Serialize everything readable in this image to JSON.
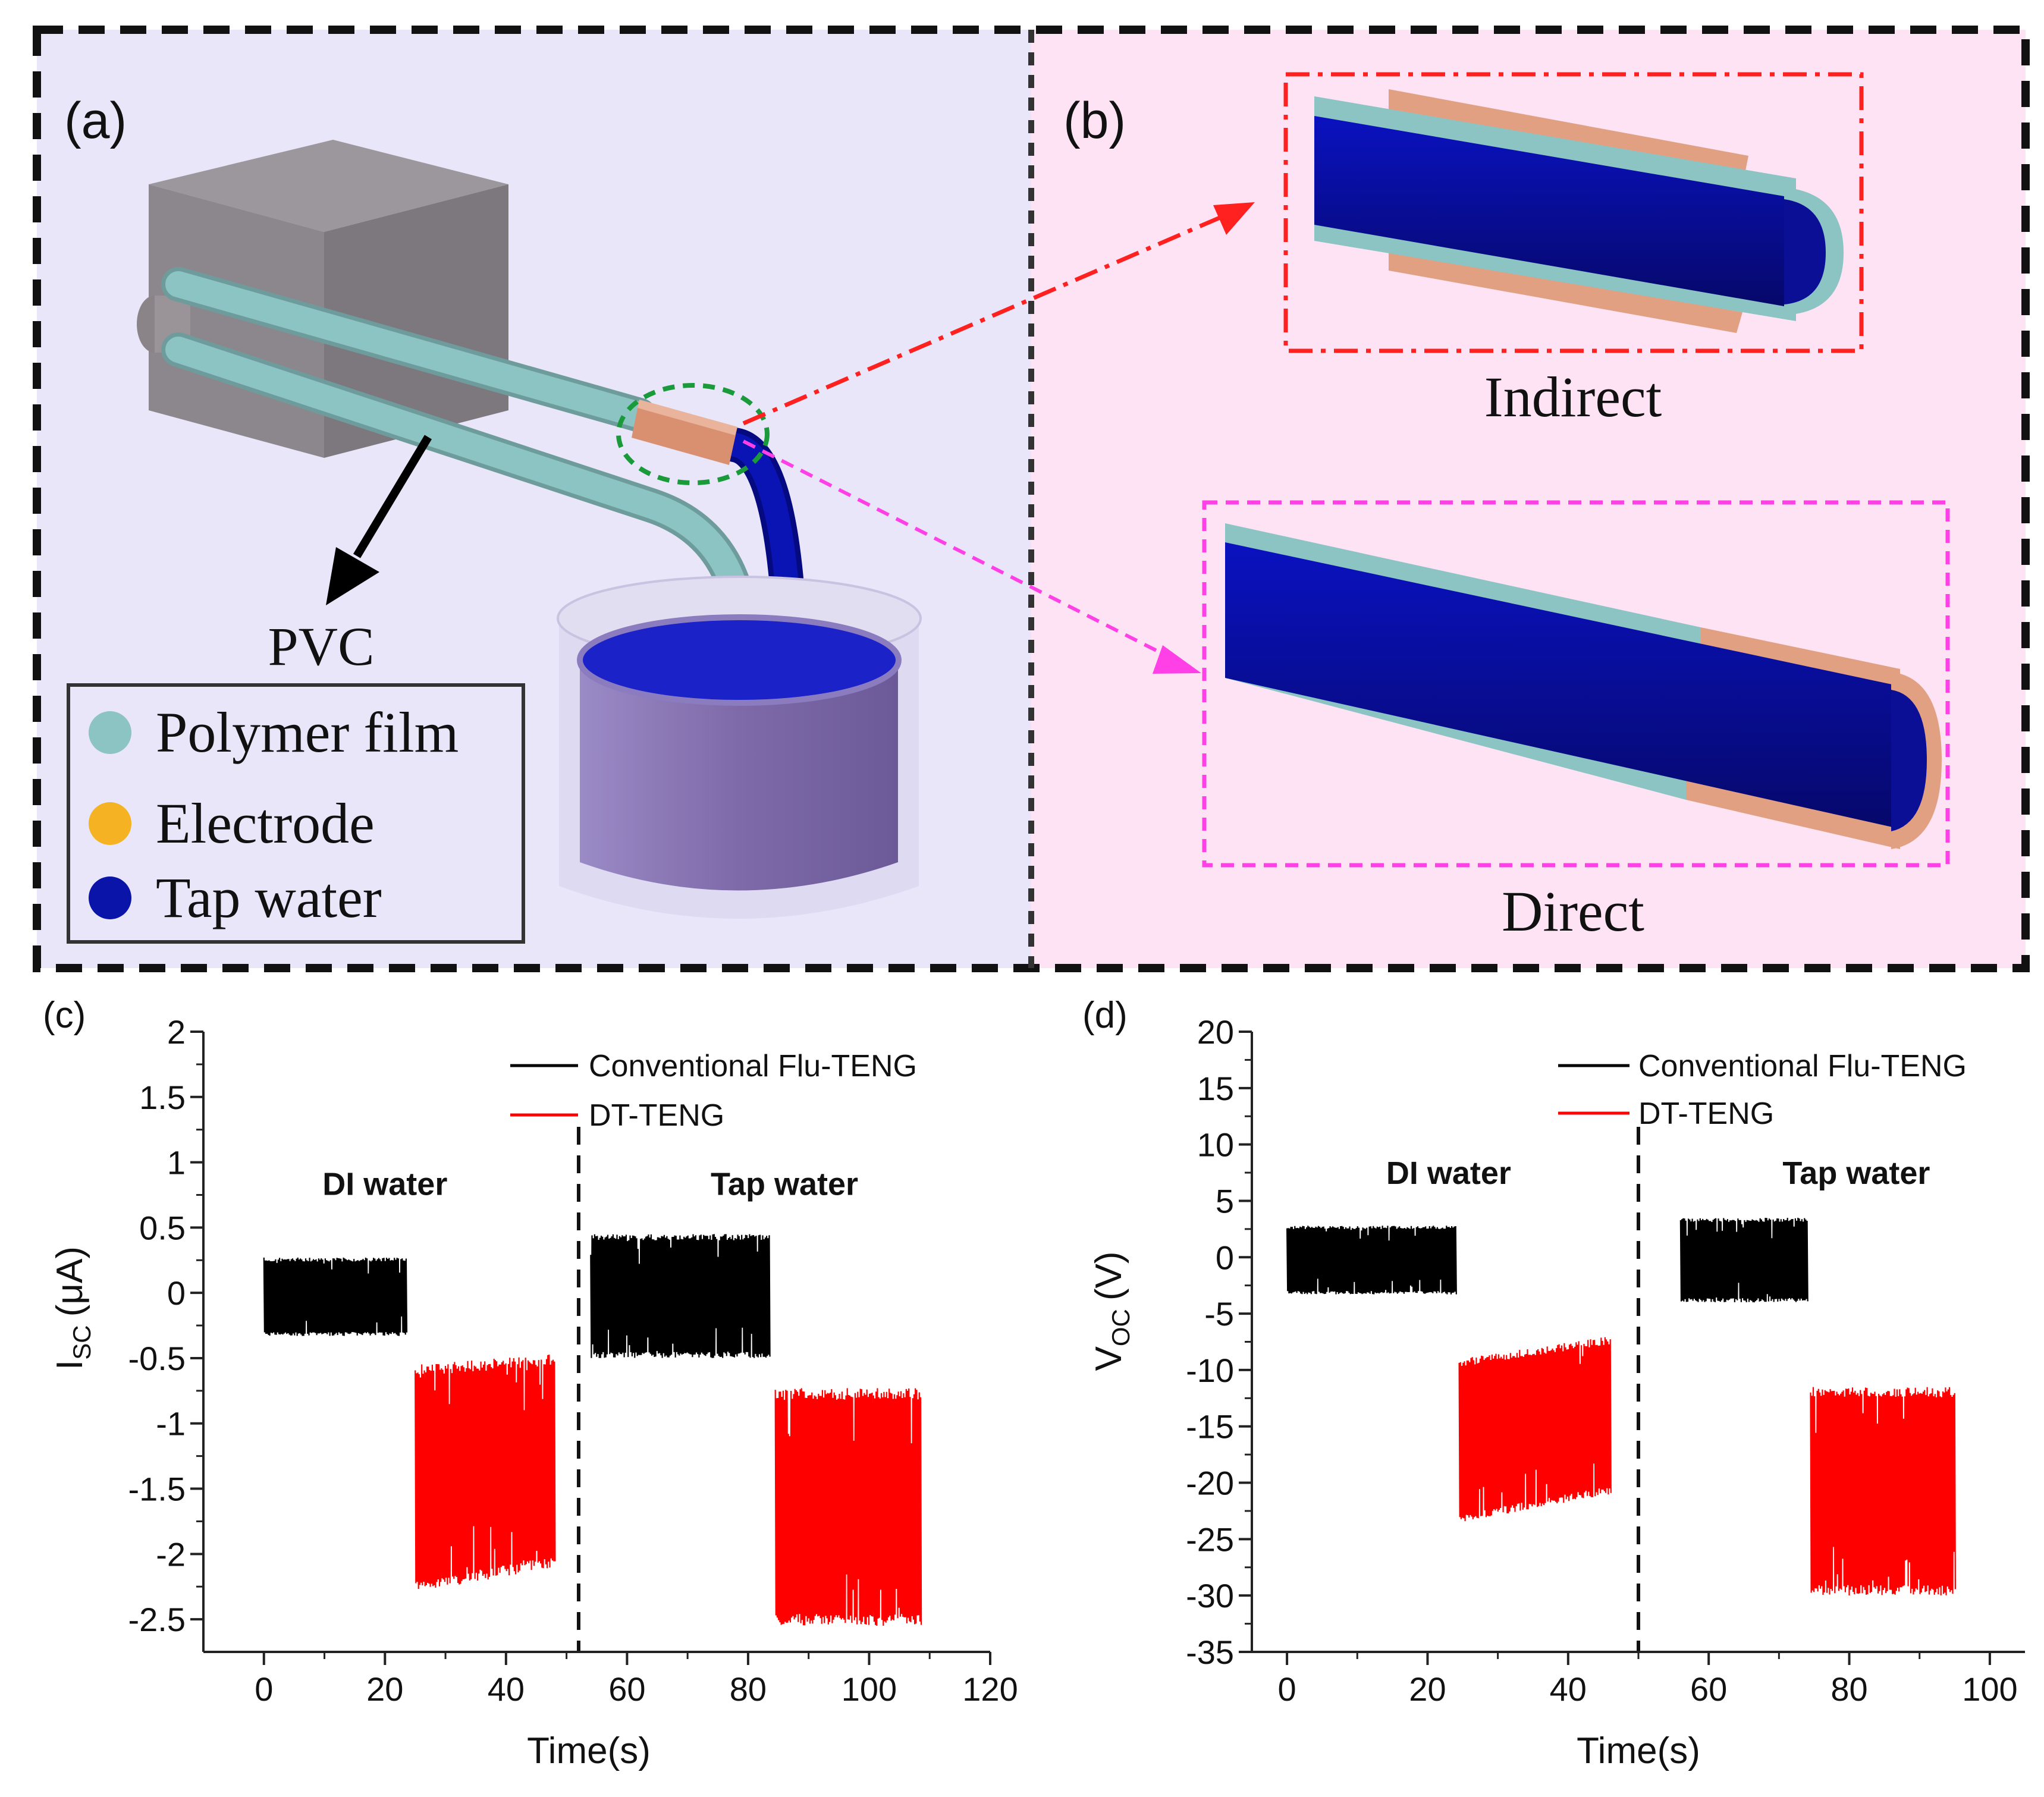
{
  "figure": {
    "panel_a": {
      "label": "(a)",
      "pvc_label": "PVC",
      "legend": [
        {
          "label": "Polymer film",
          "color": "#8cc3c3"
        },
        {
          "label": "Electrode",
          "color": "#f5b324"
        },
        {
          "label": "Tap water",
          "color": "#0a14a8"
        }
      ]
    },
    "panel_b": {
      "label": "(b)",
      "indirect_label": "Indirect",
      "direct_label": "Direct"
    },
    "colors": {
      "panel_a_bg": "#e8e6f8",
      "panel_b_bg": "#fde3f4",
      "tube": "#8cc3c3",
      "electrode": "#e2a082",
      "water": "#0a0f96",
      "block": "#8e8a90",
      "cup": "#8a78b0",
      "indirect_arrow": "#ff2020",
      "direct_arrow": "#ff40e6",
      "series_conventional": "#000000",
      "series_dt": "#ff0000"
    }
  },
  "chart_data": [
    {
      "panel": "(c)",
      "type": "line",
      "xlabel": "Time(s)",
      "ylabel": "I",
      "ylabel_sub": "SC",
      "ylabel_unit": "(μA)",
      "xlim": [
        -10,
        120
      ],
      "ylim": [
        -2.75,
        2
      ],
      "xticks": [
        0,
        20,
        40,
        60,
        80,
        100,
        120
      ],
      "yticks": [
        2,
        1.5,
        1,
        0.5,
        0,
        -0.5,
        -1,
        -1.5,
        -2,
        -2.5
      ],
      "divider_x": 52,
      "annotations": [
        {
          "text": "DI water",
          "x": 20,
          "y": 0.75
        },
        {
          "text": "Tap water",
          "x": 86,
          "y": 0.75
        }
      ],
      "legend": [
        {
          "name": "Conventional Flu-TENG",
          "color": "#000000"
        },
        {
          "name": "DT-TENG",
          "color": "#ff0000"
        }
      ],
      "series": [
        {
          "name": "Conventional Flu-TENG",
          "segment": "DI water",
          "x_range": [
            0,
            23.5
          ],
          "y_max": 0.27,
          "y_min": -0.33,
          "color": "#000000"
        },
        {
          "name": "DT-TENG",
          "segment": "DI water",
          "x_range": [
            25,
            48
          ],
          "y_max_start": -0.55,
          "y_max_end": -0.47,
          "y_min_start": -2.3,
          "y_min_end": -2.1,
          "color": "#ff0000"
        },
        {
          "name": "Conventional Flu-TENG",
          "segment": "Tap water",
          "x_range": [
            54,
            83.5
          ],
          "y_max": 0.45,
          "y_min": -0.5,
          "color": "#000000"
        },
        {
          "name": "DT-TENG",
          "segment": "Tap water",
          "x_range": [
            84.5,
            108.5
          ],
          "y_max": -0.73,
          "y_min": -2.55,
          "color": "#ff0000"
        }
      ]
    },
    {
      "panel": "(d)",
      "type": "line",
      "xlabel": "Time(s)",
      "ylabel": "V",
      "ylabel_sub": "OC",
      "ylabel_unit": "(V)",
      "xlim": [
        -5,
        105
      ],
      "ylim": [
        -35,
        20
      ],
      "xticks": [
        0,
        20,
        40,
        60,
        80,
        100
      ],
      "yticks": [
        20,
        15,
        10,
        5,
        0,
        -5,
        -10,
        -15,
        -20,
        -25,
        -30,
        -35
      ],
      "divider_x": 50,
      "annotations": [
        {
          "text": "DI water",
          "x": 23,
          "y": 6.5
        },
        {
          "text": "Tap water",
          "x": 81,
          "y": 6.5
        }
      ],
      "legend": [
        {
          "name": "Conventional Flu-TENG",
          "color": "#000000"
        },
        {
          "name": "DT-TENG",
          "color": "#ff0000"
        }
      ],
      "series": [
        {
          "name": "Conventional Flu-TENG",
          "segment": "DI water",
          "x_range": [
            0,
            24
          ],
          "y_max": 2.8,
          "y_min": -3.3,
          "color": "#000000"
        },
        {
          "name": "DT-TENG",
          "segment": "DI water",
          "x_range": [
            24.5,
            46
          ],
          "y_max_start": -9,
          "y_max_end": -7,
          "y_min_start": -23.5,
          "y_min_end": -21,
          "color": "#ff0000"
        },
        {
          "name": "Conventional Flu-TENG",
          "segment": "Tap water",
          "x_range": [
            56,
            74
          ],
          "y_max": 3.5,
          "y_min": -4,
          "color": "#000000"
        },
        {
          "name": "DT-TENG",
          "segment": "Tap water",
          "x_range": [
            74.5,
            95
          ],
          "y_max": -11.5,
          "y_min": -30,
          "color": "#ff0000"
        }
      ]
    }
  ]
}
